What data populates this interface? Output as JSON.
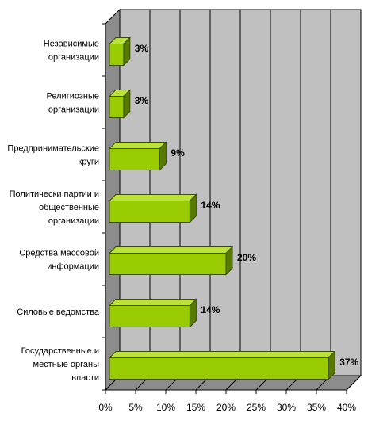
{
  "chart_data": {
    "type": "bar",
    "orientation": "horizontal",
    "style": "3d",
    "categories": [
      [
        "Независимые",
        "организации"
      ],
      [
        "Религиозные",
        "организации"
      ],
      [
        "Предпринимательские",
        "круги"
      ],
      [
        "Политически партии и",
        "общественные",
        "организации"
      ],
      [
        "Средства массовой",
        "информации"
      ],
      [
        "Силовые ведомства"
      ],
      [
        "Государственные и",
        "местные органы",
        "власти"
      ]
    ],
    "values": [
      3,
      3,
      9,
      14,
      20,
      14,
      37
    ],
    "data_labels": [
      "3%",
      "3%",
      "9%",
      "14%",
      "20%",
      "14%",
      "37%"
    ],
    "x_ticks": [
      "0%",
      "5%",
      "10%",
      "15%",
      "20%",
      "25%",
      "30%",
      "35%",
      "40%"
    ],
    "xlim": [
      0,
      40
    ],
    "grid": true,
    "legend": "none",
    "title": "",
    "xlabel": "",
    "ylabel": "",
    "colors": {
      "bar_front": "#99cc00",
      "bar_top": "#bbe23a",
      "bar_side": "#577a00",
      "bar_edge": "#3a4d00",
      "plot_back": "#c0c0c0",
      "plot_floor": "#8c8c8c",
      "plot_side": "#8c8c8c",
      "grid": "#000000"
    }
  }
}
